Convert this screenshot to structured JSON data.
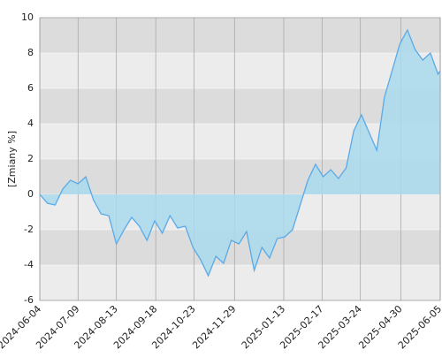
{
  "chart_data": {
    "type": "area",
    "y_label": "[Zmiany %]",
    "x": [
      "2024-06-04",
      "2024-06-11",
      "2024-06-18",
      "2024-06-25",
      "2024-07-02",
      "2024-07-09",
      "2024-07-16",
      "2024-07-23",
      "2024-07-30",
      "2024-08-06",
      "2024-08-13",
      "2024-08-20",
      "2024-08-27",
      "2024-09-03",
      "2024-09-10",
      "2024-09-17",
      "2024-09-24",
      "2024-10-01",
      "2024-10-08",
      "2024-10-15",
      "2024-10-22",
      "2024-10-29",
      "2024-11-05",
      "2024-11-12",
      "2024-11-19",
      "2024-11-26",
      "2024-12-03",
      "2024-12-10",
      "2024-12-17",
      "2024-12-24",
      "2024-12-31",
      "2025-01-07",
      "2025-01-14",
      "2025-01-21",
      "2025-01-28",
      "2025-02-04",
      "2025-02-11",
      "2025-02-18",
      "2025-02-25",
      "2025-03-04",
      "2025-03-11",
      "2025-03-18",
      "2025-03-25",
      "2025-04-01",
      "2025-04-08",
      "2025-04-15",
      "2025-04-22",
      "2025-04-29",
      "2025-05-06",
      "2025-05-13",
      "2025-05-20",
      "2025-05-27",
      "2025-06-03",
      "2025-06-05"
    ],
    "series": [
      {
        "name": "Zmiany",
        "color": "#5aaae8",
        "fill": "#a9d9ec",
        "values": [
          0,
          -0.5,
          -0.6,
          0.3,
          0.8,
          0.6,
          1.0,
          -0.3,
          -1.1,
          -1.2,
          -2.8,
          -2.0,
          -1.3,
          -1.8,
          -2.6,
          -1.5,
          -2.2,
          -1.2,
          -1.9,
          -1.8,
          -3.0,
          -3.7,
          -4.6,
          -3.5,
          -3.9,
          -2.6,
          -2.8,
          -2.1,
          -4.3,
          -3.0,
          -3.6,
          -2.5,
          -2.4,
          -2.0,
          -0.6,
          0.8,
          1.7,
          1.0,
          1.4,
          0.9,
          1.5,
          3.6,
          4.5,
          3.5,
          2.5,
          5.5,
          7.0,
          8.5,
          9.3,
          8.2,
          7.6,
          8.0,
          6.8,
          7.0
        ]
      }
    ],
    "xlim": [
      "2024-06-04",
      "2025-06-05"
    ],
    "xticks": [
      "2024-06-04",
      "2024-07-09",
      "2024-08-13",
      "2024-09-18",
      "2024-10-23",
      "2024-11-29",
      "2025-01-13",
      "2025-02-17",
      "2025-03-24",
      "2025-04-30",
      "2025-06-05"
    ],
    "ylim": [
      -6,
      10
    ],
    "yticks": [
      -6,
      -4,
      -2,
      0,
      2,
      4,
      6,
      8,
      10
    ],
    "grid": true
  }
}
